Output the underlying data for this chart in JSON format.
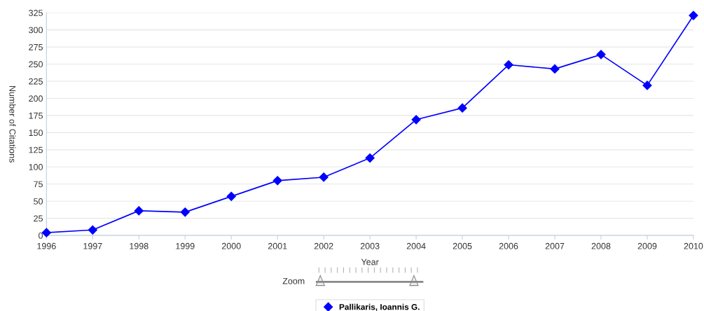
{
  "chart_data": {
    "type": "line",
    "xlabel": "Year",
    "ylabel": "Number of Citations",
    "x": [
      1996,
      1997,
      1998,
      1999,
      2000,
      2001,
      2002,
      2003,
      2004,
      2005,
      2006,
      2007,
      2008,
      2009,
      2010
    ],
    "series": [
      {
        "name": "Pallikaris, Ioannis G.",
        "color": "#0000ff",
        "values": [
          4,
          8,
          36,
          34,
          57,
          80,
          85,
          113,
          169,
          186,
          249,
          243,
          264,
          219,
          321
        ]
      }
    ],
    "xlim": [
      1996,
      2010
    ],
    "xticks": [
      1996,
      1997,
      1998,
      1999,
      2000,
      2001,
      2002,
      2003,
      2004,
      2005,
      2006,
      2007,
      2008,
      2009,
      2010
    ],
    "ylim": [
      0,
      325
    ],
    "yticks": [
      0,
      25,
      50,
      75,
      100,
      125,
      150,
      175,
      200,
      225,
      250,
      275,
      300,
      325
    ],
    "grid": "y",
    "legend": "bottom",
    "marker": "diamond",
    "line_style": "solid",
    "annotations": [
      "Zoom"
    ]
  }
}
